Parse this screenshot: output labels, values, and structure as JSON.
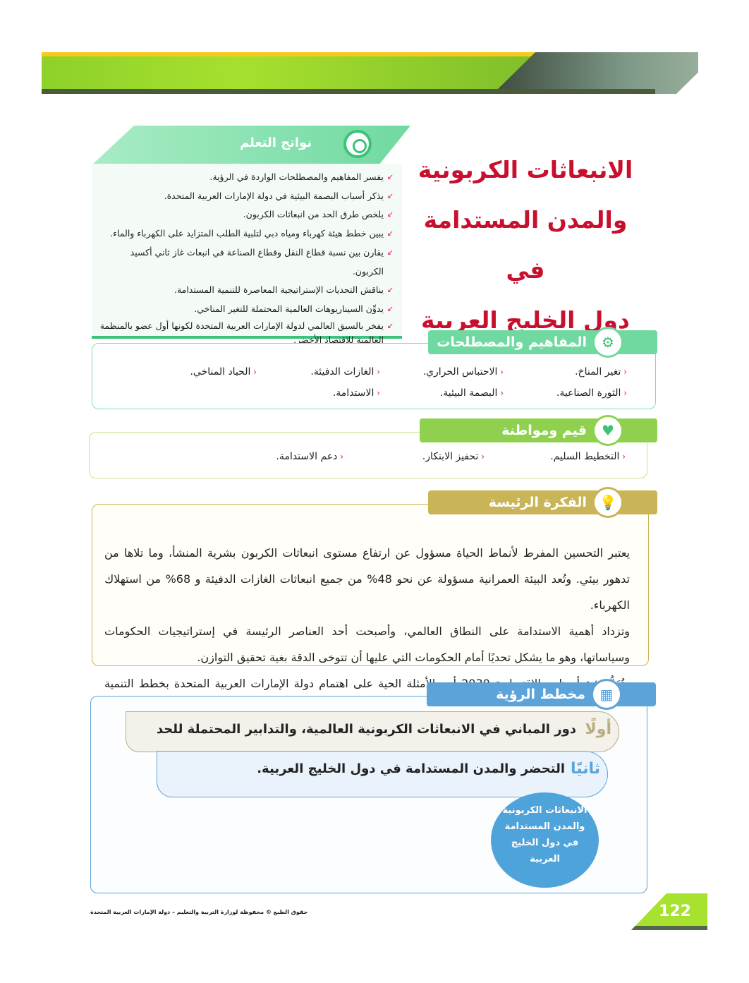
{
  "title": {
    "line1": "الانبعاثات الكربونية",
    "line2": "والمدن المستدامة في",
    "line3": "دول الخليج العربية"
  },
  "learning_outcomes": {
    "heading": "نواتج التعلم",
    "icon": "target-icon",
    "items": [
      "يفسر المفاهيم والمصطلحات الواردة في الرؤية.",
      "يذكر أسباب البصمة البيئية في دولة الإمارات العربية المتحدة.",
      "يلخص طرق الحد من انبعاثات الكربون.",
      "يبين خطط هيئة كهرباء ومياه دبي لتلبية الطلب المتزايد على الكهرباء والماء.",
      "يقارن بين نسبة قطاع النقل وقطاع الصناعة في انبعاث غاز ثاني أكسيد الكربون.",
      "يناقش التحديات الإستراتيجية المعاصرة للتنمية المستدامة.",
      "يدوِّن السيناريوهات العالمية المحتملة للتغير المناخي.",
      "يفخر بالسبق العالمي لدولة الإمارات العربية المتحدة لكونها أول عضو بالمنظمة العالمية للاقتصاد الأخضر."
    ]
  },
  "concepts": {
    "heading": "المفاهيم والمصطلحات",
    "icon": "gears-icon",
    "items": [
      "تغير المناخ.",
      "الاحتباس الحراري.",
      "الغازات الدفيئة.",
      "الحياد المناخي.",
      "الثورة الصناعية.",
      "البصمة البيئية.",
      "الاستدامة."
    ]
  },
  "values": {
    "heading": "قيم ومواطنة",
    "icon": "heart-hand-icon",
    "items": [
      "التخطيط السليم.",
      "تحفيز الابتكار.",
      "دعم الاستدامة."
    ]
  },
  "main_idea": {
    "heading": "الفكرة الرئيسة",
    "icon": "lightbulb-icon",
    "paragraphs": [
      "يعتبر التحسين المفرط لأنماط الحياة مسؤول عن ارتفاع مستوى انبعاثات الكربون بشرية المنشأ، وما تلاها من تدهور بيئي. وتُعد البيئة العمرانية مسؤولة عن نحو 48% من جميع انبعاثات الغازات الدفيئة و 68% من استهلاك الكهرباء.",
      "وتزداد أهمية الاستدامة على النطاق العالمي، وأصبحت أحد العناصر الرئيسة في إستراتيجيات الحكومات وسياساتها، وهو ما يشكل تحديًا أمام الحكومات التي عليها أن تتوخى الدقة بغية تحقيق التوازن.",
      "وتُعَدُّ رؤية أبوظبي الاقتصادية 2030 أحد الأمثلة الحية على اهتمام دولة الإمارات العربية المتحدة بخطط التنمية المستدامة."
    ]
  },
  "vision_plan": {
    "heading": "مخطط الرؤية",
    "icon": "building-icon",
    "rows": [
      {
        "ordinal": "أولًا",
        "text": "دور المباني في الانبعاثات الكربونية العالمية، والتدابير المحتملة للحد منها."
      },
      {
        "ordinal": "ثانيًا",
        "text": "التحضر والمدن المستدامة في دول الخليج العربية."
      }
    ],
    "circle": [
      "الانبعاثات الكربونية",
      "والمدن المستدامة",
      "في دول الخليج",
      "العربية"
    ]
  },
  "footer": {
    "page_number": "122",
    "copyright": "حقوق الطبع © محفوظة لوزارة التربية والتعليم – دولة الإمارات العربية المتحدة"
  },
  "colors": {
    "title": "#c8102e",
    "outcomes": "#3cc27a",
    "values": "#8fd14f",
    "idea": "#c9b458",
    "vision": "#5ba3d9",
    "bullet": "#e0197d"
  }
}
